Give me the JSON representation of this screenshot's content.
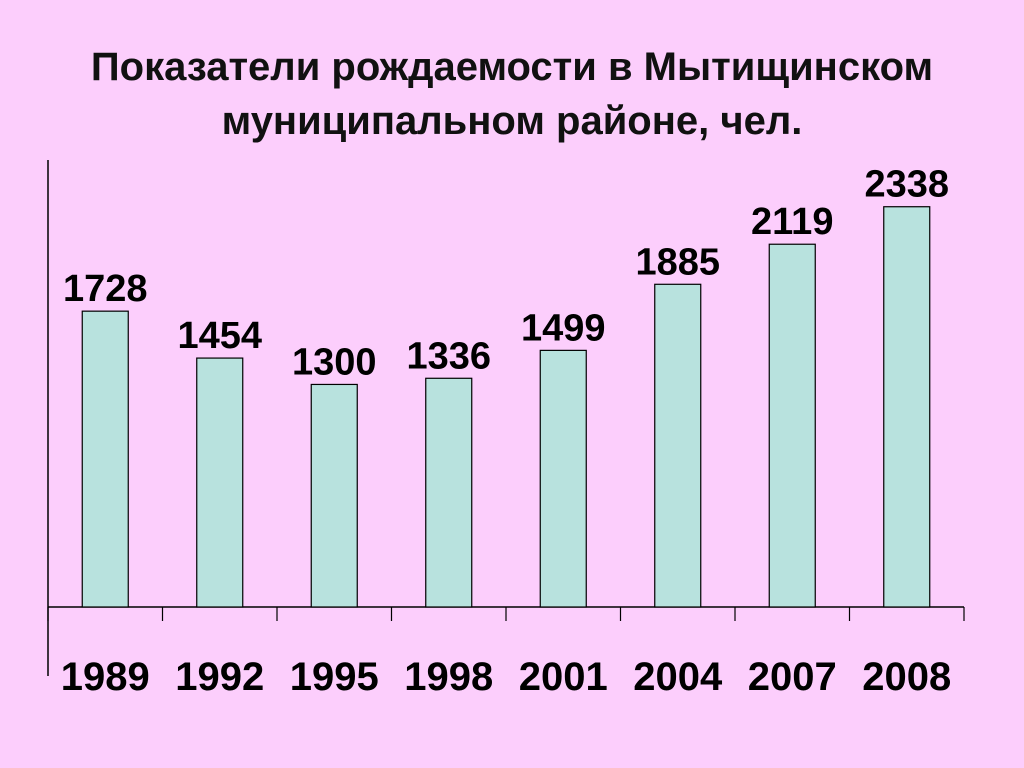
{
  "slide": {
    "background": "#fccefc"
  },
  "chart_data": {
    "type": "bar",
    "title": "Показатели рождаемости в Мытищинском муниципальном районе, чел.",
    "title_lines": [
      "Показатели рождаемости в Мытищинском",
      "муниципальном районе, чел."
    ],
    "categories": [
      "1989",
      "1992",
      "1995",
      "1998",
      "2001",
      "2004",
      "2007",
      "2008"
    ],
    "values": [
      1728,
      1454,
      1300,
      1336,
      1499,
      1885,
      2119,
      2338
    ],
    "data_labels": [
      "1728",
      "1454",
      "1300",
      "1336",
      "1499",
      "1885",
      "2119",
      "2338"
    ],
    "ylim": [
      0,
      2600
    ],
    "grid": false,
    "legend": "none",
    "bar_color": "#b8e2de",
    "bar_stroke": "#000000"
  }
}
